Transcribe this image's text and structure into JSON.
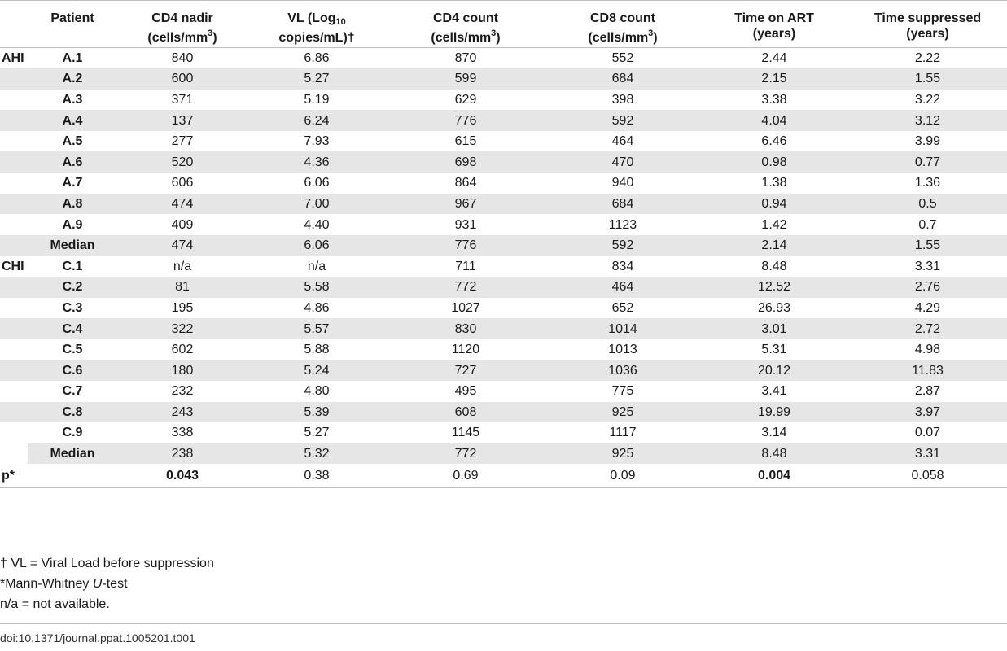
{
  "table": {
    "headers": {
      "patient": "Patient",
      "cd4_nadir": [
        "CD4 nadir",
        "(cells/mm",
        "3",
        ")"
      ],
      "vl": [
        "VL (Log",
        "10",
        "copies/mL)†"
      ],
      "cd4_count": [
        "CD4 count",
        "(cells/mm",
        "3",
        ")"
      ],
      "cd8_count": [
        "CD8 count",
        "(cells/mm",
        "3",
        ")"
      ],
      "time_art": [
        "Time on ART",
        "(years)"
      ],
      "time_sup": [
        "Time suppressed",
        "(years)"
      ]
    },
    "rows": [
      {
        "group": "AHI",
        "patient": "A.1",
        "cd4_nadir": "840",
        "vl": "6.86",
        "cd4": "870",
        "cd8": "552",
        "art": "2.44",
        "sup": "2.22"
      },
      {
        "group": "",
        "patient": "A.2",
        "cd4_nadir": "600",
        "vl": "5.27",
        "cd4": "599",
        "cd8": "684",
        "art": "2.15",
        "sup": "1.55"
      },
      {
        "group": "",
        "patient": "A.3",
        "cd4_nadir": "371",
        "vl": "5.19",
        "cd4": "629",
        "cd8": "398",
        "art": "3.38",
        "sup": "3.22"
      },
      {
        "group": "",
        "patient": "A.4",
        "cd4_nadir": "137",
        "vl": "6.24",
        "cd4": "776",
        "cd8": "592",
        "art": "4.04",
        "sup": "3.12"
      },
      {
        "group": "",
        "patient": "A.5",
        "cd4_nadir": "277",
        "vl": "7.93",
        "cd4": "615",
        "cd8": "464",
        "art": "6.46",
        "sup": "3.99"
      },
      {
        "group": "",
        "patient": "A.6",
        "cd4_nadir": "520",
        "vl": "4.36",
        "cd4": "698",
        "cd8": "470",
        "art": "0.98",
        "sup": "0.77"
      },
      {
        "group": "",
        "patient": "A.7",
        "cd4_nadir": "606",
        "vl": "6.06",
        "cd4": "864",
        "cd8": "940",
        "art": "1.38",
        "sup": "1.36"
      },
      {
        "group": "",
        "patient": "A.8",
        "cd4_nadir": "474",
        "vl": "7.00",
        "cd4": "967",
        "cd8": "684",
        "art": "0.94",
        "sup": "0.5"
      },
      {
        "group": "",
        "patient": "A.9",
        "cd4_nadir": "409",
        "vl": "4.40",
        "cd4": "931",
        "cd8": "1123",
        "art": "1.42",
        "sup": "0.7"
      },
      {
        "group": "",
        "patient": "Median",
        "cd4_nadir": "474",
        "vl": "6.06",
        "cd4": "776",
        "cd8": "592",
        "art": "2.14",
        "sup": "1.55"
      },
      {
        "group": "CHI",
        "patient": "C.1",
        "cd4_nadir": "n/a",
        "vl": "n/a",
        "cd4": "711",
        "cd8": "834",
        "art": "8.48",
        "sup": "3.31"
      },
      {
        "group": "",
        "patient": "C.2",
        "cd4_nadir": "81",
        "vl": "5.58",
        "cd4": "772",
        "cd8": "464",
        "art": "12.52",
        "sup": "2.76"
      },
      {
        "group": "",
        "patient": "C.3",
        "cd4_nadir": "195",
        "vl": "4.86",
        "cd4": "1027",
        "cd8": "652",
        "art": "26.93",
        "sup": "4.29"
      },
      {
        "group": "",
        "patient": "C.4",
        "cd4_nadir": "322",
        "vl": "5.57",
        "cd4": "830",
        "cd8": "1014",
        "art": "3.01",
        "sup": "2.72"
      },
      {
        "group": "",
        "patient": "C.5",
        "cd4_nadir": "602",
        "vl": "5.88",
        "cd4": "1120",
        "cd8": "1013",
        "art": "5.31",
        "sup": "4.98"
      },
      {
        "group": "",
        "patient": "C.6",
        "cd4_nadir": "180",
        "vl": "5.24",
        "cd4": "727",
        "cd8": "1036",
        "art": "20.12",
        "sup": "11.83"
      },
      {
        "group": "",
        "patient": "C.7",
        "cd4_nadir": "232",
        "vl": "4.80",
        "cd4": "495",
        "cd8": "775",
        "art": "3.41",
        "sup": "2.87"
      },
      {
        "group": "",
        "patient": "C.8",
        "cd4_nadir": "243",
        "vl": "5.39",
        "cd4": "608",
        "cd8": "925",
        "art": "19.99",
        "sup": "3.97"
      },
      {
        "group": "",
        "patient": "C.9",
        "cd4_nadir": "338",
        "vl": "5.27",
        "cd4": "1145",
        "cd8": "1117",
        "art": "3.14",
        "sup": "0.07"
      },
      {
        "group": "",
        "patient": "Median",
        "cd4_nadir": "238",
        "vl": "5.32",
        "cd4": "772",
        "cd8": "925",
        "art": "8.48",
        "sup": "3.31"
      }
    ],
    "pvalue_row": {
      "label": "p*",
      "cd4_nadir": "0.043",
      "vl": "0.38",
      "cd4": "0.69",
      "cd8": "0.09",
      "art": "0.004",
      "sup": "0.058"
    },
    "shade_color": "#e6e6e6"
  },
  "footnotes": {
    "vl_note": "† VL = Viral Load before suppression",
    "mw_note": [
      "*Mann-Whitney ",
      "U",
      "-test"
    ],
    "na_note": "n/a = not available."
  },
  "doi": "doi:10.1371/journal.ppat.1005201.t001"
}
